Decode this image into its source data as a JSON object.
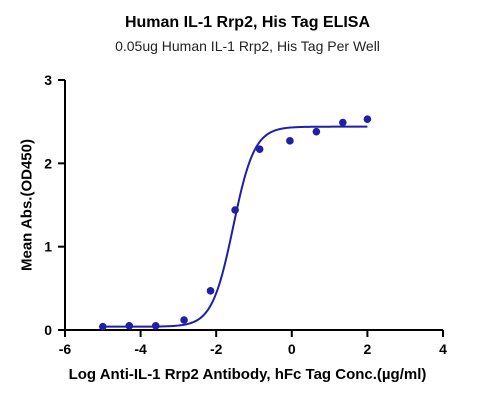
{
  "chart_data": {
    "type": "scatter",
    "title": "Human IL-1 Rrp2, His Tag ELISA",
    "subtitle": "0.05ug Human IL-1 Rrp2, His Tag Per Well",
    "xlabel": "Log Anti-IL-1 Rrp2 Antibody, hFc Tag Conc.(µg/ml)",
    "ylabel": "Mean Abs.(OD450)",
    "xlim": [
      -6,
      4
    ],
    "ylim": [
      0,
      3
    ],
    "xticks": [
      -6,
      -4,
      -2,
      0,
      2,
      4
    ],
    "yticks": [
      0,
      1,
      2,
      3
    ],
    "grid": false,
    "colors": {
      "points": "#1f1fa8",
      "curve": "#1f1fa8"
    },
    "series": [
      {
        "type": "scatter",
        "x": [
          -5.0,
          -4.3,
          -3.6,
          -2.85,
          -2.15,
          -1.5,
          -0.85,
          -0.05,
          0.65,
          1.35,
          2.0
        ],
        "y": [
          0.04,
          0.05,
          0.05,
          0.12,
          0.47,
          1.44,
          2.17,
          2.27,
          2.38,
          2.49,
          2.53
        ]
      },
      {
        "type": "line",
        "fit": {
          "bottom": 0.04,
          "top": 2.44,
          "log_ec50": -1.55,
          "hill": 1.55,
          "x_range": [
            -5.0,
            2.0
          ]
        }
      }
    ]
  }
}
